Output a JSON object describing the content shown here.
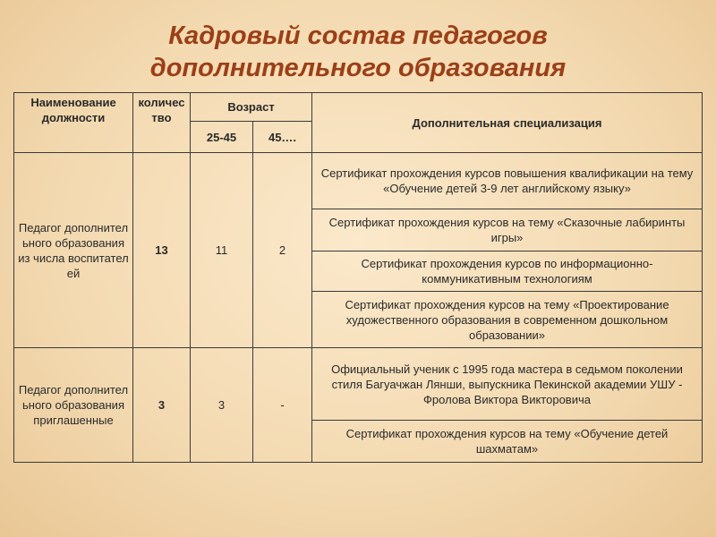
{
  "title": {
    "line1": "Кадровый состав педагогов",
    "line2": "дополнительного образования"
  },
  "header": {
    "position": "Наименование должности",
    "count": "количество",
    "age": "Возраст",
    "age_1": "25-45",
    "age_2": "45….",
    "specialization": "Дополнительная специализация"
  },
  "rows": [
    {
      "position": "Педагог дополнительного образования из числа воспитателей",
      "count": "13",
      "age_1": "11",
      "age_2": "2",
      "specializations": [
        "Сертификат прохождения курсов повышения квалификации на тему «Обучение детей 3-9 лет английскому языку»",
        "Сертификат прохождения курсов  на тему «Сказочные лабиринты игры»",
        "Сертификат прохождения курсов по информационно-коммуникативным  технологиям",
        "Сертификат прохождения курсов на тему «Проектирование художественного образования в современном дошкольном образовании»"
      ]
    },
    {
      "position": "Педагог дополнительного образования приглашенные",
      "count": "3",
      "age_1": "3",
      "age_2": "-",
      "specializations": [
        "Официальный ученик с 1995 года  мастера в седьмом поколении стиля Багуачжан Лянши, выпускника Пекинской академии УШУ - Фролова Виктора Викторовича",
        "Сертификат прохождения курсов на тему «Обучение детей шахматам»"
      ]
    }
  ]
}
